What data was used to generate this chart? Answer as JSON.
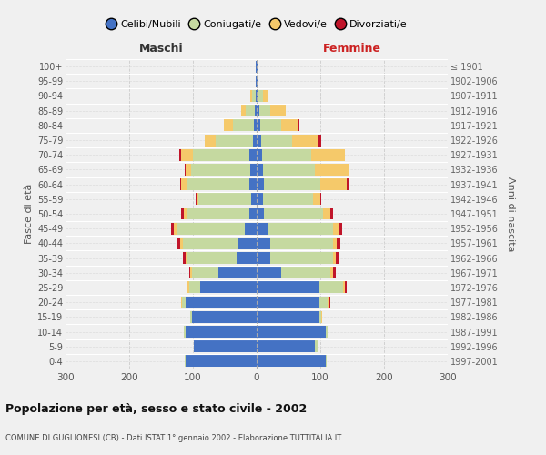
{
  "age_groups": [
    "0-4",
    "5-9",
    "10-14",
    "15-19",
    "20-24",
    "25-29",
    "30-34",
    "35-39",
    "40-44",
    "45-49",
    "50-54",
    "55-59",
    "60-64",
    "65-69",
    "70-74",
    "75-79",
    "80-84",
    "85-89",
    "90-94",
    "95-99",
    "100+"
  ],
  "birth_years": [
    "1997-2001",
    "1992-1996",
    "1987-1991",
    "1982-1986",
    "1977-1981",
    "1972-1976",
    "1967-1971",
    "1962-1966",
    "1957-1961",
    "1952-1956",
    "1947-1951",
    "1942-1946",
    "1937-1941",
    "1932-1936",
    "1927-1931",
    "1922-1926",
    "1917-1921",
    "1912-1916",
    "1907-1911",
    "1902-1906",
    "≤ 1901"
  ],
  "male_celibi": [
    112,
    98,
    112,
    102,
    112,
    88,
    60,
    32,
    28,
    18,
    12,
    8,
    12,
    10,
    12,
    6,
    4,
    3,
    2,
    1,
    1
  ],
  "male_coniugati": [
    1,
    1,
    2,
    2,
    5,
    18,
    42,
    78,
    88,
    108,
    98,
    83,
    98,
    93,
    88,
    58,
    33,
    14,
    5,
    1,
    0
  ],
  "male_vedovi": [
    0,
    0,
    0,
    0,
    1,
    2,
    2,
    2,
    4,
    4,
    4,
    4,
    8,
    8,
    18,
    18,
    14,
    8,
    3,
    0,
    0
  ],
  "male_divorziati": [
    0,
    0,
    0,
    0,
    0,
    2,
    2,
    4,
    4,
    4,
    4,
    1,
    2,
    2,
    4,
    0,
    0,
    0,
    0,
    0,
    0
  ],
  "female_nubili": [
    108,
    92,
    108,
    98,
    98,
    98,
    38,
    22,
    22,
    18,
    12,
    10,
    12,
    10,
    8,
    7,
    5,
    4,
    2,
    1,
    1
  ],
  "female_coniugate": [
    2,
    3,
    4,
    4,
    14,
    38,
    78,
    98,
    98,
    102,
    92,
    78,
    88,
    82,
    78,
    48,
    33,
    18,
    8,
    1,
    0
  ],
  "female_vedove": [
    0,
    0,
    0,
    1,
    2,
    3,
    4,
    4,
    6,
    8,
    12,
    12,
    42,
    52,
    52,
    42,
    28,
    24,
    8,
    1,
    0
  ],
  "female_divorziate": [
    0,
    0,
    0,
    0,
    1,
    2,
    4,
    6,
    6,
    6,
    4,
    2,
    2,
    2,
    0,
    4,
    1,
    0,
    0,
    0,
    0
  ],
  "colors_celibi_nubili": "#4472C4",
  "colors_coniugati": "#C5D9A0",
  "colors_vedovi": "#F5C96A",
  "colors_divorziati": "#C0152A",
  "title": "Popolazione per età, sesso e stato civile - 2002",
  "subtitle": "COMUNE DI GUGLIONESI (CB) - Dati ISTAT 1° gennaio 2002 - Elaborazione TUTTITALIA.IT",
  "label_maschi": "Maschi",
  "label_femmine": "Femmine",
  "ylabel_left": "Fasce di età",
  "ylabel_right": "Anni di nascita",
  "legend_labels": [
    "Celibi/Nubili",
    "Coniugati/e",
    "Vedovi/e",
    "Divorziati/e"
  ],
  "xlim": 300,
  "bg_color": "#f0f0f0"
}
